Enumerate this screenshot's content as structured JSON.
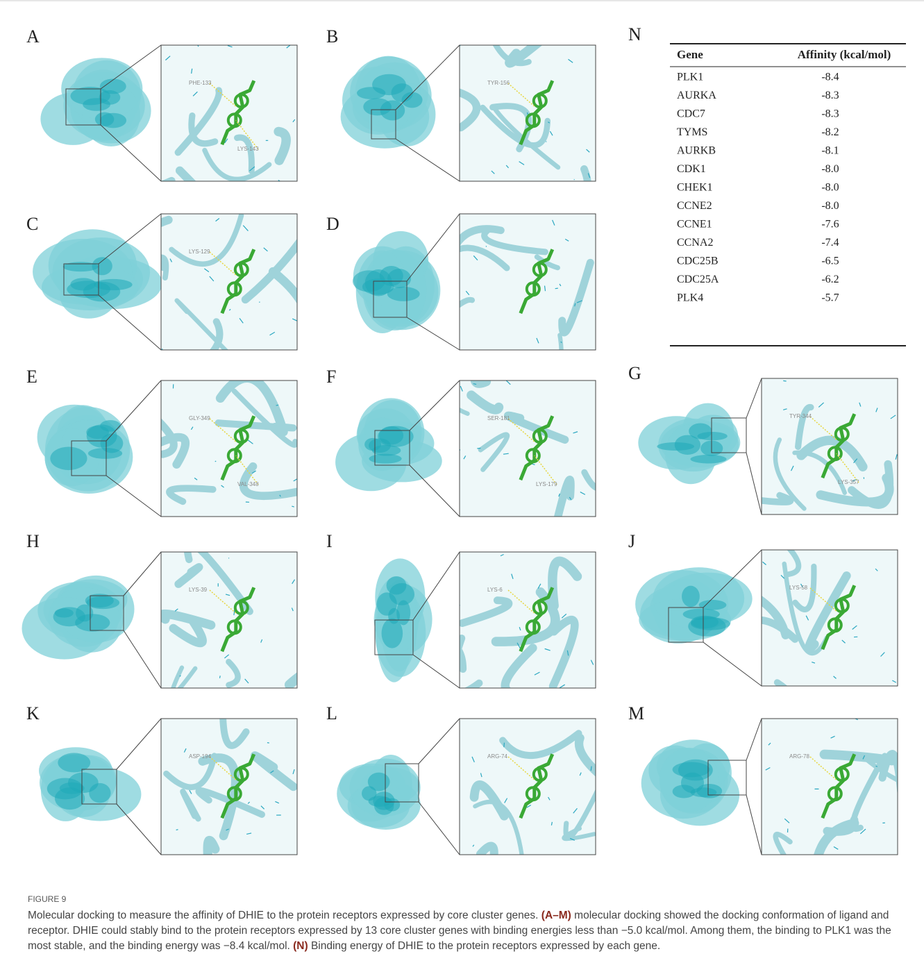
{
  "panels": [
    {
      "letter": "A",
      "residues": [
        "PHE-133",
        "LYS-143"
      ]
    },
    {
      "letter": "B",
      "residues": [
        "TYR-156"
      ]
    },
    {
      "letter": "C",
      "residues": [
        "LYS-129"
      ]
    },
    {
      "letter": "D",
      "residues": []
    },
    {
      "letter": "E",
      "residues": [
        "GLY-349",
        "VAL-348"
      ]
    },
    {
      "letter": "F",
      "residues": [
        "SER-181",
        "LYS-179"
      ]
    },
    {
      "letter": "G",
      "residues": [
        "TYR-344",
        "LYS-357"
      ]
    },
    {
      "letter": "H",
      "residues": [
        "LYS-39"
      ]
    },
    {
      "letter": "I",
      "residues": [
        "LYS-6"
      ]
    },
    {
      "letter": "J",
      "residues": [
        "LYS-58"
      ]
    },
    {
      "letter": "K",
      "residues": [
        "ASP-194"
      ]
    },
    {
      "letter": "L",
      "residues": [
        "ARG-74"
      ]
    },
    {
      "letter": "M",
      "residues": [
        "ARG-78"
      ]
    }
  ],
  "table": {
    "letter": "N",
    "headers": [
      "Gene",
      "Affinity (kcal/mol)"
    ],
    "rows": [
      [
        "PLK1",
        "-8.4"
      ],
      [
        "AURKA",
        "-8.3"
      ],
      [
        "CDC7",
        "-8.3"
      ],
      [
        "TYMS",
        "-8.2"
      ],
      [
        "AURKB",
        "-8.1"
      ],
      [
        "CDK1",
        "-8.0"
      ],
      [
        "CHEK1",
        "-8.0"
      ],
      [
        "CCNE2",
        "-8.0"
      ],
      [
        "CCNE1",
        "-7.6"
      ],
      [
        "CCNA2",
        "-7.4"
      ],
      [
        "CDC25B",
        "-6.5"
      ],
      [
        "CDC25A",
        "-6.2"
      ],
      [
        "PLK4",
        "-5.7"
      ]
    ]
  },
  "caption": {
    "label": "FIGURE 9",
    "parts": [
      "Molecular docking to measure the affinity of DHIE to the protein receptors expressed by core cluster genes. ",
      "(A–M)",
      " molecular docking showed the docking conformation of ligand and receptor. DHIE could stably bind to the protein receptors expressed by 13 core cluster genes with binding energies less than −5.0 kcal/mol. Among them, the binding to PLK1 was the most stable, and the binding energy was −8.4 kcal/mol. ",
      "(N)",
      " Binding energy of DHIE to the protein receptors expressed by each gene."
    ]
  }
}
